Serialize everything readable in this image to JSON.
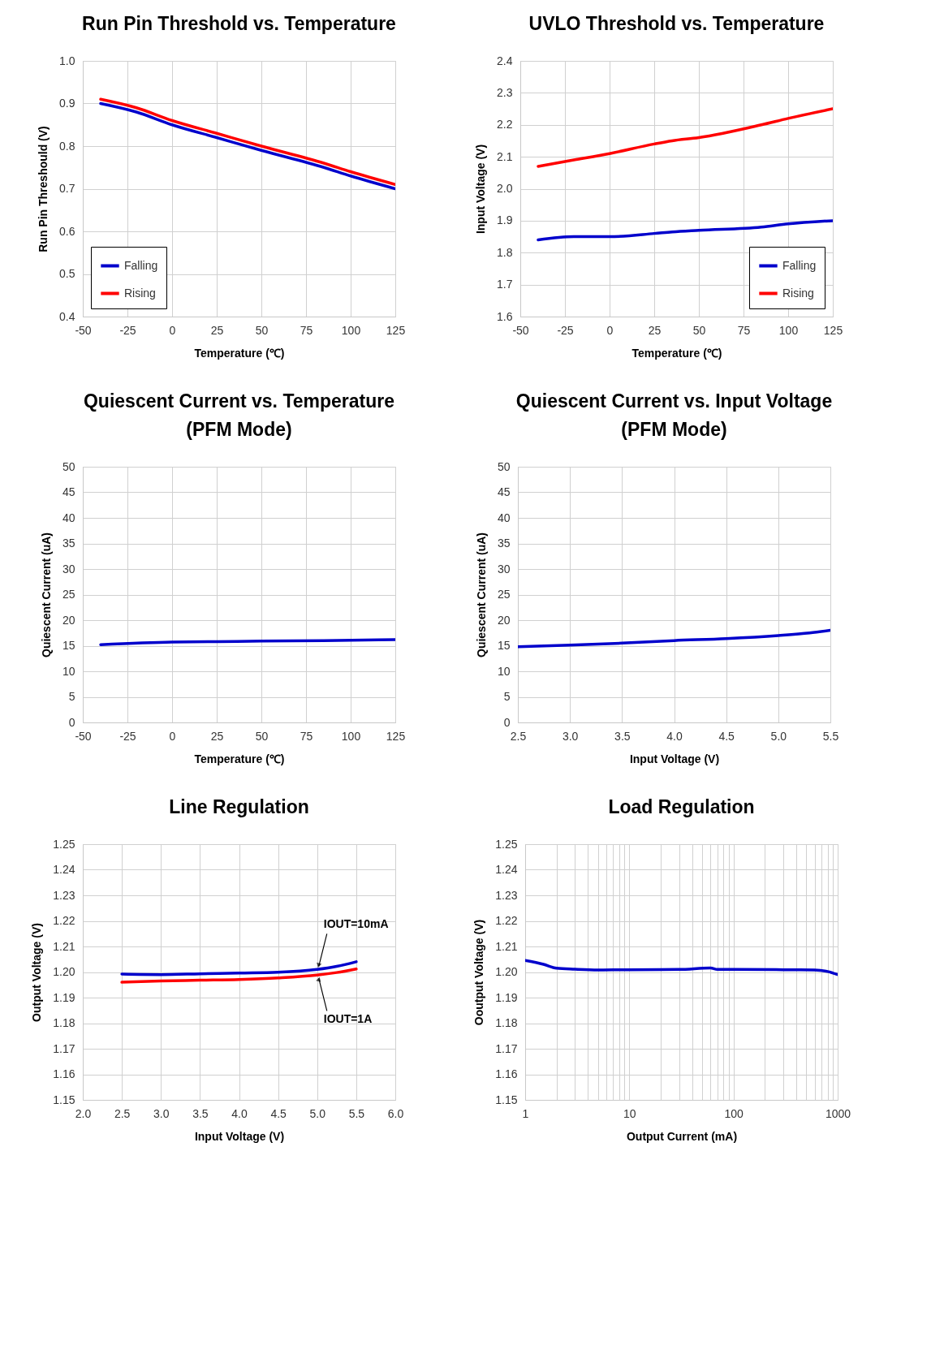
{
  "chart_data": [
    {
      "type": "line",
      "title": "Run Pin Threshold vs. Temperature",
      "xlabel": "Temperature (℃)",
      "ylabel": "Run Pin Threshould (V)",
      "xlim": [
        -50,
        125
      ],
      "xticks": [
        -50,
        -25,
        0,
        25,
        50,
        75,
        100,
        125
      ],
      "ylim": [
        0.4,
        1.0
      ],
      "yticks": [
        0.4,
        0.5,
        0.6,
        0.7,
        0.8,
        0.9,
        {
          "value": 1.0,
          "label": "1.0"
        }
      ],
      "grid": true,
      "legend": "bottom left",
      "x": [
        -40,
        -20,
        0,
        25,
        50,
        85,
        100,
        125
      ],
      "series": [
        {
          "name": "Falling",
          "color": "#0000cc",
          "values": [
            0.9,
            0.88,
            0.85,
            0.82,
            0.79,
            0.75,
            0.73,
            0.7
          ]
        },
        {
          "name": "Rising",
          "color": "#ff0000",
          "values": [
            0.91,
            0.89,
            0.86,
            0.83,
            0.8,
            0.76,
            0.74,
            0.71
          ]
        }
      ]
    },
    {
      "type": "line",
      "title": "UVLO Threshold vs. Temperature",
      "xlabel": "Temperature (℃)",
      "ylabel": "Input Voltage (V)",
      "xlim": [
        -50,
        125
      ],
      "xticks": [
        -50,
        -25,
        0,
        25,
        50,
        75,
        100,
        125
      ],
      "ylim": [
        1.6,
        2.4
      ],
      "yticks": [
        1.6,
        1.7,
        1.8,
        1.9,
        {
          "value": 2.0,
          "label": "2.0"
        },
        2.1,
        2.2,
        2.3,
        2.4
      ],
      "grid": true,
      "legend": "bottom right",
      "x": [
        -40,
        -20,
        0,
        25,
        35,
        50,
        85,
        100,
        125
      ],
      "series": [
        {
          "name": "Falling",
          "color": "#0000cc",
          "values": [
            1.84,
            1.85,
            1.85,
            1.86,
            1.865,
            1.87,
            1.88,
            1.89,
            1.9
          ]
        },
        {
          "name": "Rising",
          "color": "#ff0000",
          "values": [
            2.07,
            2.09,
            2.11,
            2.14,
            2.15,
            2.16,
            2.2,
            2.22,
            2.25
          ]
        }
      ]
    },
    {
      "type": "line",
      "title": "Quiescent Current vs. Temperature",
      "subtitle": "(PFM Mode)",
      "xlabel": "Temperature (℃)",
      "ylabel": "Quiescent Current (uA)",
      "xlim": [
        -50,
        125
      ],
      "xticks": [
        -50,
        -25,
        0,
        25,
        50,
        75,
        100,
        125
      ],
      "ylim": [
        0,
        50
      ],
      "yticks": [
        0,
        5,
        10,
        15,
        20,
        25,
        30,
        35,
        40,
        45,
        50
      ],
      "grid": true,
      "x": [
        -40,
        0,
        25,
        50,
        85,
        125
      ],
      "series": [
        {
          "color": "#0000cc",
          "values": [
            15.2,
            15.7,
            15.8,
            15.9,
            16.0,
            16.2
          ]
        }
      ]
    },
    {
      "type": "line",
      "title": "Quiescent Current vs. Input Voltage",
      "subtitle": "(PFM Mode)",
      "xlabel": "Input Voltage (V)",
      "ylabel": "Quiescent Current (uA)",
      "xlim": [
        2.5,
        5.5
      ],
      "xticks": [
        2.5,
        {
          "value": 3,
          "label": "3.0"
        },
        3.5,
        {
          "value": 4,
          "label": "4.0"
        },
        4.5,
        {
          "value": 5,
          "label": "5.0"
        },
        5.5
      ],
      "ylim": [
        0,
        50
      ],
      "yticks": [
        0,
        5,
        10,
        15,
        20,
        25,
        30,
        35,
        40,
        45,
        50
      ],
      "grid": true,
      "x": [
        2.5,
        3.0,
        3.5,
        4.0,
        4.5,
        5.0,
        5.3,
        5.5
      ],
      "series": [
        {
          "color": "#0000cc",
          "values": [
            14.8,
            15.1,
            15.5,
            16.0,
            16.4,
            17.0,
            17.5,
            18.0
          ]
        }
      ]
    },
    {
      "type": "line",
      "title": "Line Regulation",
      "xlabel": "Input Voltage (V)",
      "ylabel": "Output Voltage (V)",
      "xlim": [
        2,
        6
      ],
      "xticks": [
        {
          "value": 2,
          "label": "2.0"
        },
        2.5,
        {
          "value": 3,
          "label": "3.0"
        },
        3.5,
        {
          "value": 4,
          "label": "4.0"
        },
        4.5,
        {
          "value": 5,
          "label": "5.0"
        },
        5.5,
        {
          "value": 6,
          "label": "6.0"
        }
      ],
      "ylim": [
        1.15,
        1.25
      ],
      "yticks": [
        1.15,
        1.16,
        1.17,
        1.18,
        1.19,
        {
          "value": 1.2,
          "label": "1.20"
        },
        1.21,
        1.22,
        1.23,
        1.24,
        1.25
      ],
      "grid": true,
      "x": [
        2.5,
        3.0,
        3.5,
        4.0,
        4.5,
        5.0,
        5.25,
        5.5
      ],
      "series": [
        {
          "name": "IOUT=10mA",
          "color": "#0000cc",
          "values": [
            1.1992,
            1.199,
            1.1993,
            1.1996,
            1.1999,
            1.201,
            1.2022,
            1.204
          ]
        },
        {
          "name": "IOUT=1A",
          "color": "#ff0000",
          "values": [
            1.196,
            1.1965,
            1.1968,
            1.1971,
            1.1977,
            1.1988,
            1.1998,
            1.2012
          ]
        }
      ]
    },
    {
      "type": "line",
      "title": "Load Regulation",
      "xlabel": "Output Current (mA)",
      "ylabel": "Ooutput Voltage (V)",
      "log": "x",
      "xlim": [
        1,
        1000
      ],
      "xticks": [
        1,
        {
          "value": 2,
          "label": null
        },
        {
          "value": 3,
          "label": null
        },
        {
          "value": 4,
          "label": null
        },
        {
          "value": 5,
          "label": null
        },
        {
          "value": 6,
          "label": null
        },
        {
          "value": 7,
          "label": null
        },
        {
          "value": 8,
          "label": null
        },
        {
          "value": 9,
          "label": null
        },
        10,
        {
          "value": 20,
          "label": null
        },
        {
          "value": 30,
          "label": null
        },
        {
          "value": 40,
          "label": null
        },
        {
          "value": 50,
          "label": null
        },
        {
          "value": 60,
          "label": null
        },
        {
          "value": 70,
          "label": null
        },
        {
          "value": 80,
          "label": null
        },
        {
          "value": 90,
          "label": null
        },
        100,
        {
          "value": 200,
          "label": null
        },
        {
          "value": 300,
          "label": null
        },
        {
          "value": 400,
          "label": null
        },
        {
          "value": 500,
          "label": null
        },
        {
          "value": 600,
          "label": null
        },
        {
          "value": 700,
          "label": null
        },
        {
          "value": 800,
          "label": null
        },
        {
          "value": 900,
          "label": null
        },
        1000
      ],
      "ylim": [
        1.15,
        1.25
      ],
      "yticks": [
        1.15,
        1.16,
        1.17,
        1.18,
        1.19,
        {
          "value": 1.2,
          "label": "1.20"
        },
        1.21,
        1.22,
        1.23,
        1.24,
        1.25
      ],
      "grid": true,
      "x": [
        1,
        1.5,
        2,
        3,
        5,
        10,
        30,
        60,
        70,
        100,
        300,
        600,
        800,
        1000
      ],
      "series": [
        {
          "color": "#0000cc",
          "values": [
            1.2045,
            1.203,
            1.2015,
            1.2011,
            1.2008,
            1.2009,
            1.201,
            1.2016,
            1.201,
            1.201,
            1.2009,
            1.2008,
            1.2002,
            1.199
          ]
        }
      ]
    }
  ]
}
